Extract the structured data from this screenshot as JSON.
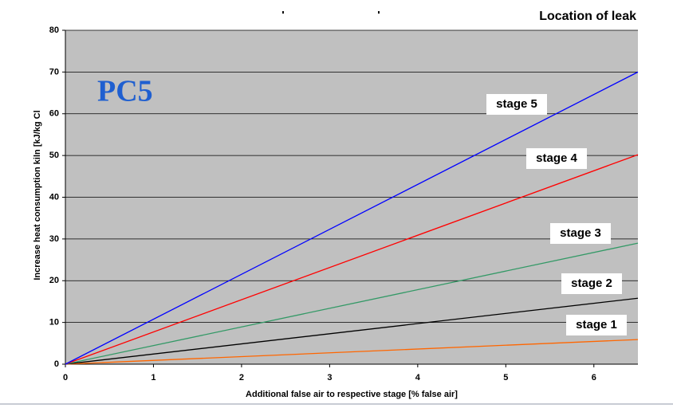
{
  "chart_data": {
    "type": "line",
    "title": "Location of leak",
    "annotation": "PC5",
    "x_label": "Additional false air to respective stage [% false air]",
    "y_label": "Increase heat consumption kiln [kJ/kg Cl",
    "x": [
      0,
      6.5
    ],
    "series": [
      {
        "name": "stage 1",
        "color": "#ff6600",
        "values": [
          0,
          5.9
        ]
      },
      {
        "name": "stage 2",
        "color": "#000000",
        "values": [
          0,
          15.8
        ]
      },
      {
        "name": "stage 3",
        "color": "#339966",
        "values": [
          0,
          29
        ]
      },
      {
        "name": "stage 4",
        "color": "#ff0000",
        "values": [
          0,
          50.2
        ]
      },
      {
        "name": "stage 5",
        "color": "#0000ff",
        "values": [
          0,
          70
        ]
      }
    ],
    "xlim": [
      0,
      6.5
    ],
    "xticks": [
      0,
      1,
      2,
      3,
      4,
      5,
      6
    ],
    "ylim": [
      0,
      80
    ],
    "yticks": [
      0,
      10,
      20,
      30,
      40,
      50,
      60,
      70,
      80
    ],
    "grid": true,
    "background": "#c0c0c0"
  }
}
